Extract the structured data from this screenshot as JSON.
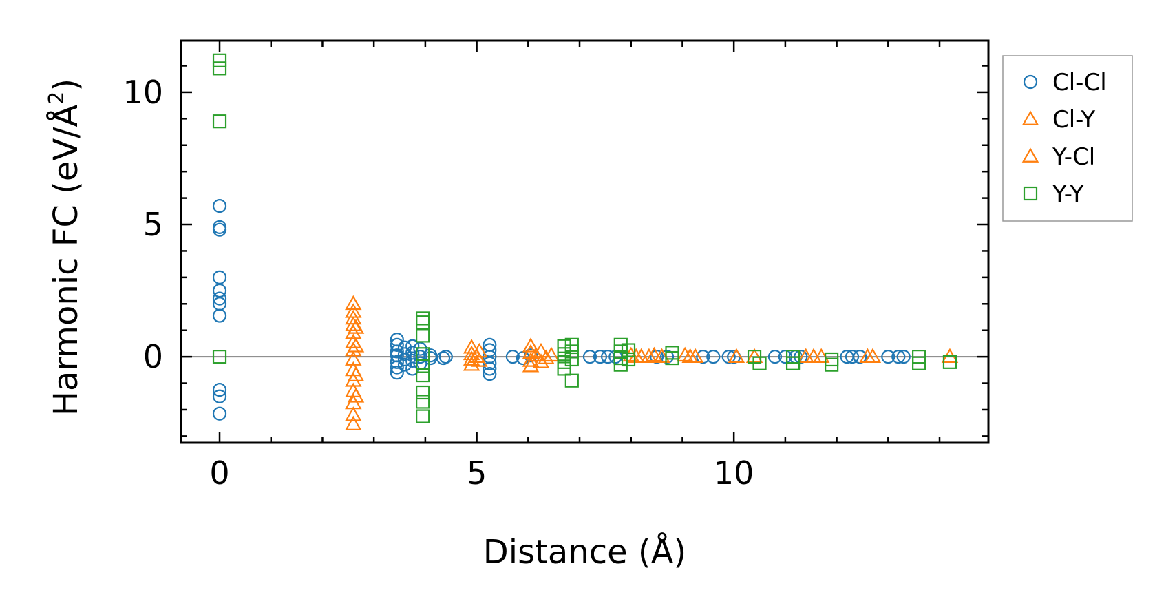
{
  "chart_data": {
    "type": "scatter",
    "xlabel": "Distance (Å)",
    "ylabel": "Harmonic FC (eV/Å",
    "ylabel_sup": "2",
    "ylabel_close": ")",
    "xlim": [
      -0.75,
      14.95
    ],
    "ylim": [
      -3.25,
      11.95
    ],
    "xticks": [
      0,
      5,
      10
    ],
    "xtick_labels": [
      "0",
      "5",
      "10"
    ],
    "yticks": [
      0,
      5,
      10
    ],
    "ytick_labels": [
      "0",
      "5",
      "10"
    ],
    "x_minor_step": 1,
    "y_minor_step": 1,
    "zero_line": true,
    "legend_position": "right, outside top",
    "series": [
      {
        "name": "Cl-Cl",
        "marker": "circle",
        "color": "#1f77b4",
        "points": [
          [
            0,
            5.7
          ],
          [
            0,
            4.9
          ],
          [
            0,
            4.8
          ],
          [
            0,
            3.0
          ],
          [
            0,
            2.5
          ],
          [
            0,
            2.2
          ],
          [
            0,
            2.0
          ],
          [
            0,
            1.55
          ],
          [
            0,
            -1.25
          ],
          [
            0,
            -1.5
          ],
          [
            0,
            -2.15
          ],
          [
            3.45,
            0.65
          ],
          [
            3.45,
            0.45
          ],
          [
            3.45,
            0.2
          ],
          [
            3.45,
            0.05
          ],
          [
            3.45,
            -0.2
          ],
          [
            3.45,
            -0.4
          ],
          [
            3.45,
            -0.6
          ],
          [
            3.6,
            0.35
          ],
          [
            3.6,
            0.1
          ],
          [
            3.6,
            -0.1
          ],
          [
            3.6,
            -0.3
          ],
          [
            3.75,
            0.4
          ],
          [
            3.75,
            0.15
          ],
          [
            3.75,
            -0.15
          ],
          [
            3.75,
            -0.45
          ],
          [
            3.9,
            0.3
          ],
          [
            3.9,
            0.0
          ],
          [
            3.9,
            -0.25
          ],
          [
            4.1,
            0.05
          ],
          [
            4.1,
            -0.05
          ],
          [
            4.4,
            0.0
          ],
          [
            4.35,
            -0.05
          ],
          [
            5.25,
            0.45
          ],
          [
            5.25,
            0.25
          ],
          [
            5.25,
            0.0
          ],
          [
            5.25,
            -0.25
          ],
          [
            5.25,
            -0.45
          ],
          [
            5.25,
            -0.65
          ],
          [
            5.7,
            0.0
          ],
          [
            5.9,
            -0.05
          ],
          [
            6.05,
            0.05
          ],
          [
            7.2,
            0.0
          ],
          [
            7.4,
            0.0
          ],
          [
            7.55,
            0.0
          ],
          [
            7.7,
            0.0
          ],
          [
            8.5,
            0.0
          ],
          [
            8.7,
            0.0
          ],
          [
            9.4,
            0.0
          ],
          [
            9.6,
            0.0
          ],
          [
            9.9,
            0.0
          ],
          [
            10.0,
            0.0
          ],
          [
            10.8,
            0.0
          ],
          [
            11.0,
            0.0
          ],
          [
            11.2,
            0.0
          ],
          [
            11.3,
            0.0
          ],
          [
            12.2,
            0.0
          ],
          [
            12.3,
            0.0
          ],
          [
            12.45,
            0.0
          ],
          [
            13.0,
            0.0
          ],
          [
            13.2,
            0.0
          ],
          [
            13.3,
            0.0
          ]
        ]
      },
      {
        "name": "Cl-Y",
        "marker": "triangle",
        "color": "#ff7f0e",
        "points": [
          [
            2.6,
            2.0
          ],
          [
            2.6,
            1.7
          ],
          [
            2.6,
            1.45
          ],
          [
            2.6,
            1.2
          ],
          [
            2.6,
            0.9
          ],
          [
            2.6,
            0.55
          ],
          [
            2.6,
            0.25
          ],
          [
            2.6,
            -0.1
          ],
          [
            2.6,
            -0.5
          ],
          [
            2.6,
            -0.9
          ],
          [
            2.6,
            -1.3
          ],
          [
            2.6,
            -1.75
          ],
          [
            2.6,
            -2.2
          ],
          [
            2.6,
            -2.55
          ],
          [
            4.9,
            0.35
          ],
          [
            4.9,
            0.1
          ],
          [
            4.9,
            -0.1
          ],
          [
            4.9,
            -0.3
          ],
          [
            5.05,
            0.2
          ],
          [
            5.05,
            -0.15
          ],
          [
            6.05,
            0.4
          ],
          [
            6.05,
            0.15
          ],
          [
            6.05,
            -0.15
          ],
          [
            6.05,
            -0.35
          ],
          [
            6.25,
            0.2
          ],
          [
            6.25,
            -0.2
          ],
          [
            6.45,
            0.05
          ],
          [
            8.0,
            0.05
          ],
          [
            8.2,
            0.0
          ],
          [
            8.45,
            0.05
          ],
          [
            8.6,
            0.0
          ],
          [
            9.05,
            0.05
          ],
          [
            9.25,
            0.0
          ],
          [
            10.05,
            0.0
          ],
          [
            10.4,
            0.0
          ],
          [
            11.4,
            0.0
          ],
          [
            11.7,
            0.0
          ],
          [
            12.6,
            0.0
          ],
          [
            14.2,
            0.0
          ]
        ]
      },
      {
        "name": "Y-Cl",
        "marker": "triangle",
        "color": "#ff7f0e",
        "points": [
          [
            2.65,
            1.1
          ],
          [
            2.65,
            0.4
          ],
          [
            2.65,
            -0.7
          ],
          [
            2.65,
            -1.5
          ],
          [
            5.0,
            0.0
          ],
          [
            6.15,
            0.05
          ],
          [
            6.35,
            -0.05
          ],
          [
            8.1,
            0.0
          ],
          [
            8.35,
            0.0
          ],
          [
            9.15,
            0.0
          ],
          [
            11.55,
            0.0
          ],
          [
            12.7,
            0.0
          ]
        ]
      },
      {
        "name": "Y-Y",
        "marker": "square",
        "color": "#2ca02c",
        "points": [
          [
            0,
            11.2
          ],
          [
            0,
            10.9
          ],
          [
            0,
            8.9
          ],
          [
            0,
            0.0
          ],
          [
            3.95,
            1.45
          ],
          [
            3.95,
            1.3
          ],
          [
            3.95,
            0.8
          ],
          [
            3.95,
            0.1
          ],
          [
            3.95,
            -0.35
          ],
          [
            3.95,
            -0.7
          ],
          [
            3.95,
            -1.35
          ],
          [
            3.95,
            -1.7
          ],
          [
            3.95,
            -2.25
          ],
          [
            6.7,
            0.4
          ],
          [
            6.7,
            0.1
          ],
          [
            6.7,
            -0.2
          ],
          [
            6.7,
            -0.45
          ],
          [
            6.85,
            0.45
          ],
          [
            6.85,
            0.2
          ],
          [
            6.85,
            -0.1
          ],
          [
            6.85,
            -0.9
          ],
          [
            7.8,
            0.45
          ],
          [
            7.8,
            0.2
          ],
          [
            7.8,
            -0.05
          ],
          [
            7.8,
            -0.3
          ],
          [
            7.95,
            0.25
          ],
          [
            7.95,
            -0.1
          ],
          [
            8.8,
            0.15
          ],
          [
            8.8,
            -0.05
          ],
          [
            10.4,
            0.0
          ],
          [
            10.5,
            -0.25
          ],
          [
            11.15,
            0.0
          ],
          [
            11.15,
            -0.25
          ],
          [
            11.9,
            -0.1
          ],
          [
            11.9,
            -0.3
          ],
          [
            13.6,
            0.0
          ],
          [
            13.6,
            -0.25
          ],
          [
            14.2,
            -0.2
          ]
        ]
      }
    ]
  }
}
